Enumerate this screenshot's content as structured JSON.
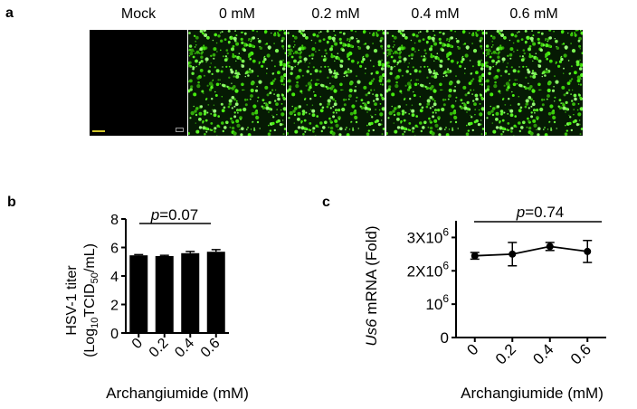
{
  "figure": {
    "panel_a": {
      "label": "a",
      "conditions": [
        "Mock",
        "0 mM",
        "0.2 mM",
        "0.4 mM",
        "0.6 mM"
      ]
    },
    "panel_b": {
      "label": "b"
    },
    "panel_c": {
      "label": "c"
    }
  },
  "chart_data": [
    {
      "type": "bar",
      "categories": [
        "0",
        "0.2",
        "0.4",
        "0.6"
      ],
      "values": [
        5.45,
        5.4,
        5.6,
        5.7
      ],
      "errors": [
        0.05,
        0.05,
        0.12,
        0.15
      ],
      "ylim": [
        0,
        8
      ],
      "yticks": [
        "0",
        "2",
        "4",
        "6",
        "8"
      ],
      "ylabel_line1": "HSV-1 titer",
      "ylabel_line2_parts": [
        "(Log",
        "10",
        "TCID",
        "50",
        "/mL)"
      ],
      "xlabel": "Archangiumide (mM)",
      "annotation_p": "p",
      "annotation_value": "=0.07",
      "bar_color": "#000000"
    },
    {
      "type": "line",
      "categories": [
        "0",
        "0.2",
        "0.4",
        "0.6"
      ],
      "values": [
        2450000,
        2500000,
        2730000,
        2580000
      ],
      "errors": [
        100000,
        350000,
        120000,
        330000
      ],
      "ylim": [
        0,
        3500000
      ],
      "yticks": [
        {
          "value": 0,
          "label": "0"
        },
        {
          "value": 1000000,
          "label": "10",
          "sup": "6"
        },
        {
          "value": 2000000,
          "label": "2X10",
          "sup": "6"
        },
        {
          "value": 3000000,
          "label": "3X10",
          "sup": "6"
        }
      ],
      "ylabel_italic": "Us6",
      "ylabel_rest": " mRNA (Fold)",
      "xlabel": "Archangiumide (mM)",
      "annotation_p": "p",
      "annotation_value": "=0.74",
      "line_color": "#000000"
    }
  ]
}
